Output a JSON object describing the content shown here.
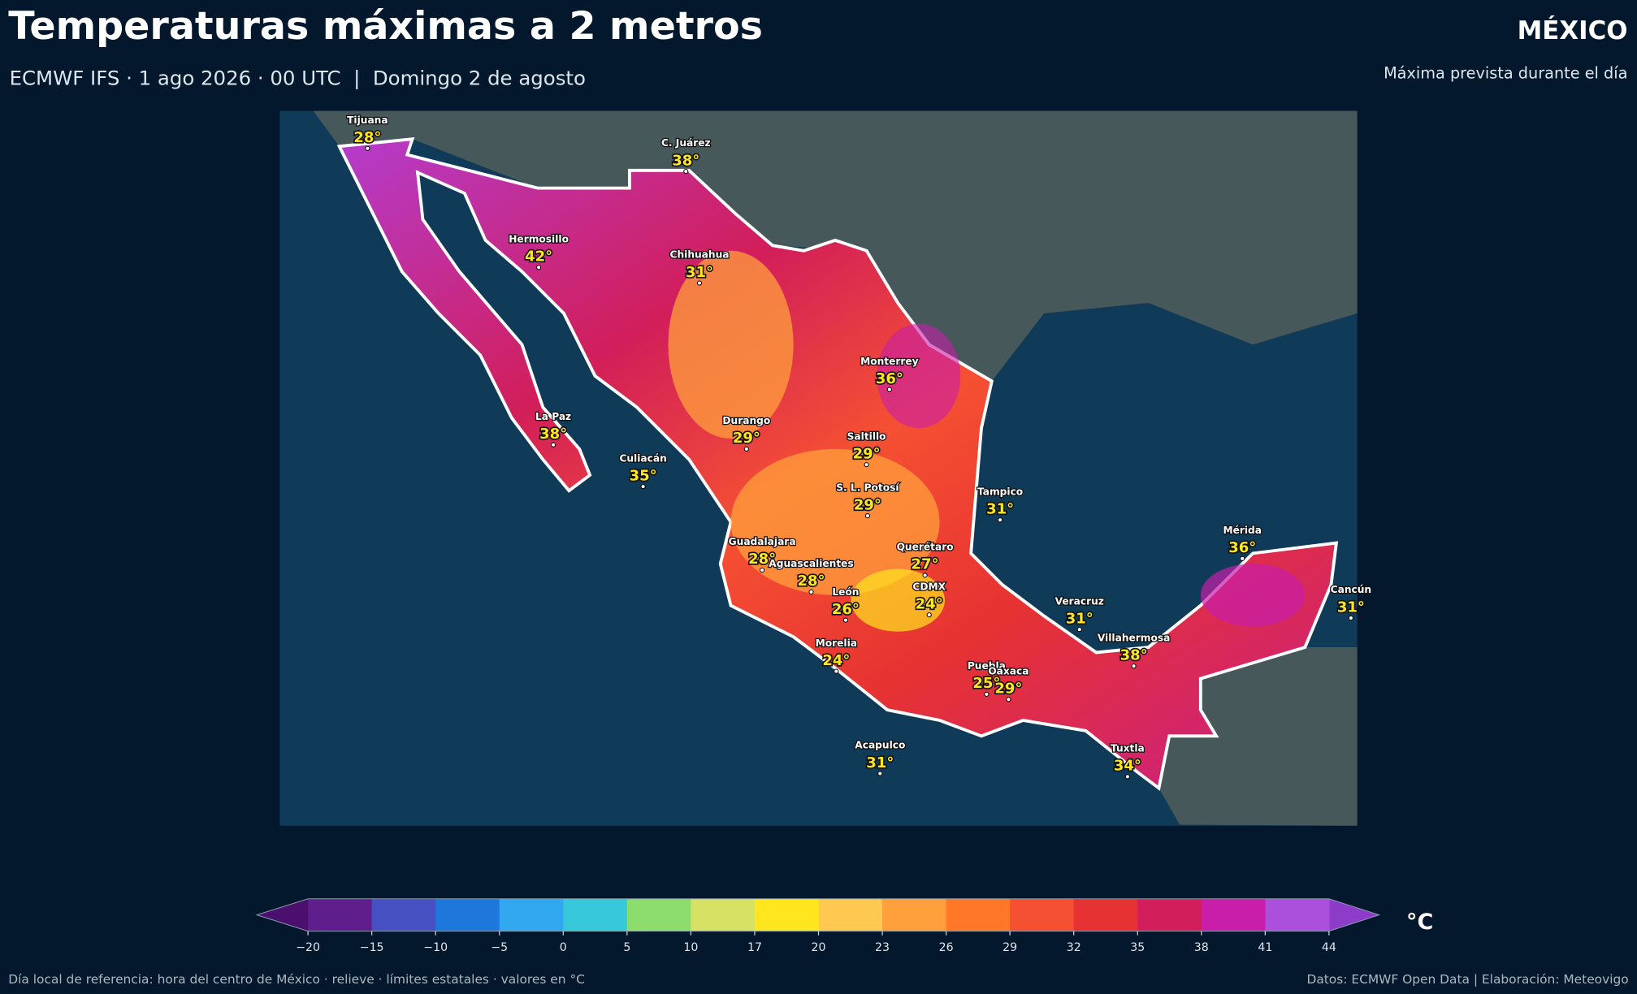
{
  "header": {
    "title": "Temperaturas máximas a 2 metros",
    "subtitle": "ECMWF IFS · 1 ago 2026 · 00 UTC  |  Domingo 2 de agosto",
    "region": "MÉXICO",
    "note": "Máxima prevista durante el día"
  },
  "cities": [
    {
      "name": "Tijuana",
      "temp": 28,
      "temp_label": "28°"
    },
    {
      "name": "C. Juárez",
      "temp": 38,
      "temp_label": "38°"
    },
    {
      "name": "Hermosillo",
      "temp": 42,
      "temp_label": "42°"
    },
    {
      "name": "Chihuahua",
      "temp": 31,
      "temp_label": "31°"
    },
    {
      "name": "Monterrey",
      "temp": 36,
      "temp_label": "36°"
    },
    {
      "name": "La Paz",
      "temp": 38,
      "temp_label": "38°"
    },
    {
      "name": "Durango",
      "temp": 29,
      "temp_label": "29°"
    },
    {
      "name": "Saltillo",
      "temp": 29,
      "temp_label": "29°"
    },
    {
      "name": "Culiacán",
      "temp": 35,
      "temp_label": "35°"
    },
    {
      "name": "S. L. Potosí",
      "temp": 29,
      "temp_label": "29°"
    },
    {
      "name": "Tampico",
      "temp": 31,
      "temp_label": "31°"
    },
    {
      "name": "Mérida",
      "temp": 36,
      "temp_label": "36°"
    },
    {
      "name": "Querétaro",
      "temp": 27,
      "temp_label": "27°"
    },
    {
      "name": "Guadalajara",
      "temp": 28,
      "temp_label": "28°"
    },
    {
      "name": "Aguascalientes",
      "temp": 28,
      "temp_label": "28°"
    },
    {
      "name": "CDMX",
      "temp": 24,
      "temp_label": "24°"
    },
    {
      "name": "León",
      "temp": 26,
      "temp_label": "26°"
    },
    {
      "name": "Veracruz",
      "temp": 31,
      "temp_label": "31°"
    },
    {
      "name": "Cancún",
      "temp": 31,
      "temp_label": "31°"
    },
    {
      "name": "Villahermosa",
      "temp": 38,
      "temp_label": "38°"
    },
    {
      "name": "Morelia",
      "temp": 24,
      "temp_label": "24°"
    },
    {
      "name": "Puebla",
      "temp": 25,
      "temp_label": "25°"
    },
    {
      "name": "Oaxaca",
      "temp": 29,
      "temp_label": "29°"
    },
    {
      "name": "Acapulco",
      "temp": 31,
      "temp_label": "31°"
    },
    {
      "name": "Tuxtla",
      "temp": 34,
      "temp_label": "34°"
    }
  ],
  "colorbar": {
    "unit": "°C",
    "ticks": [
      {
        "value": -20,
        "label": "−20"
      },
      {
        "value": -15,
        "label": "−15"
      },
      {
        "value": -10,
        "label": "−10"
      },
      {
        "value": -5,
        "label": "−5"
      },
      0,
      5,
      10,
      17,
      20,
      23,
      26,
      29,
      32,
      35,
      38,
      41,
      44
    ],
    "bin_colors": [
      "#5e1f8c",
      "#4650c0",
      "#1e78dc",
      "#32a8f0",
      "#37c8dc",
      "#8cdc6e",
      "#d7e164",
      "#ffe61e",
      "#ffc850",
      "#ffa03c",
      "#ff7828",
      "#f55032",
      "#e63232",
      "#d21e5a",
      "#c81eaa",
      "#aa50dc"
    ],
    "under_color": "#4b0f6e",
    "over_color": "#8c3cc8"
  },
  "footer": {
    "left": "Día local de referencia: hora del centro de México · relieve · límites estatales · valores en °C",
    "right": "Datos: ECMWF Open Data | Elaboración: Meteovigo"
  }
}
